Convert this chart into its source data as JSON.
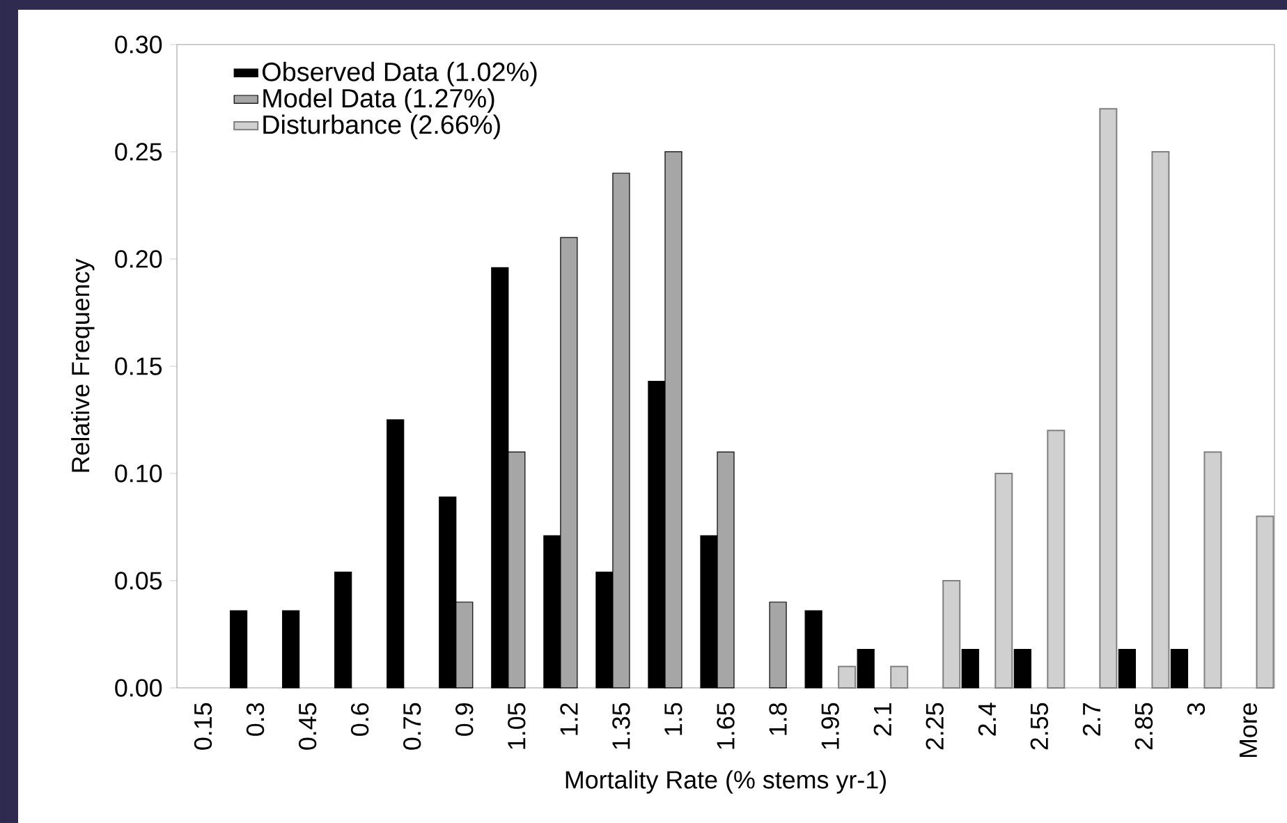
{
  "chart_data": {
    "type": "bar",
    "xlabel": "Mortality Rate (% stems yr-1)",
    "ylabel": "Relative Frequency",
    "categories": [
      "0.15",
      "0.3",
      "0.45",
      "0.6",
      "0.75",
      "0.9",
      "1.05",
      "1.2",
      "1.35",
      "1.5",
      "1.65",
      "1.8",
      "1.95",
      "2.1",
      "2.25",
      "2.4",
      "2.55",
      "2.7",
      "2.85",
      "3",
      "More"
    ],
    "series": [
      {
        "name": "Observed Data (1.02%)",
        "color": "#000000",
        "values": [
          null,
          0.036,
          0.036,
          0.054,
          0.125,
          0.089,
          0.196,
          0.071,
          0.054,
          0.143,
          0.071,
          null,
          0.036,
          0.018,
          null,
          0.018,
          0.018,
          null,
          0.018,
          0.018,
          null
        ]
      },
      {
        "name": "Model Data (1.27%)",
        "color": "#a6a6a6",
        "values": [
          null,
          null,
          null,
          null,
          null,
          0.04,
          0.11,
          0.21,
          0.24,
          0.25,
          0.11,
          0.04,
          null,
          null,
          null,
          null,
          null,
          null,
          null,
          null,
          null
        ]
      },
      {
        "name": "Disturbance (2.66%)",
        "color": "#d0d0d0",
        "values": [
          null,
          null,
          null,
          null,
          null,
          null,
          null,
          null,
          null,
          null,
          null,
          null,
          0.01,
          0.01,
          0.05,
          0.1,
          0.12,
          0.27,
          0.25,
          0.11,
          0.08
        ]
      }
    ],
    "ylim": [
      0,
      0.3
    ],
    "yticks": [
      {
        "value": 0,
        "label": "0.00"
      },
      {
        "value": 0.05,
        "label": "0.05"
      },
      {
        "value": 0.1,
        "label": "0.10"
      },
      {
        "value": 0.15,
        "label": "0.15"
      },
      {
        "value": 0.2,
        "label": "0.20"
      },
      {
        "value": 0.25,
        "label": "0.25"
      },
      {
        "value": 0.3,
        "label": "0.30"
      }
    ],
    "grid": false,
    "legend": "top left"
  }
}
